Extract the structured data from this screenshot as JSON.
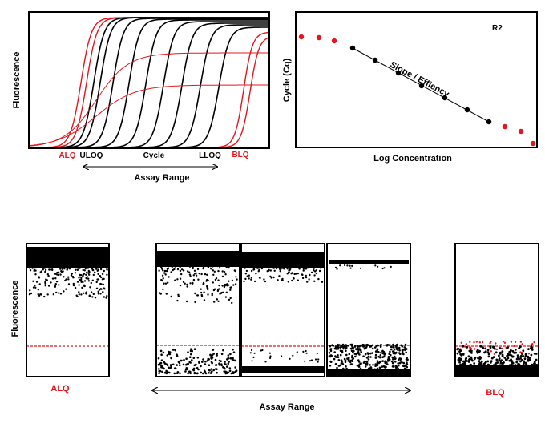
{
  "curves_panel": {
    "ylabel": "Fluorescence",
    "x_labels": {
      "alq": "ALQ",
      "uloq": "ULOQ",
      "cycle": "Cycle",
      "lloq": "LLOQ",
      "blq": "BLQ"
    },
    "range_label": "Assay Range"
  },
  "standard_panel": {
    "title": "R2",
    "ylabel": "Cycle (Cq)",
    "xlabel": "Log Concentration",
    "annotation": "Slope / Effiency"
  },
  "partition_panel": {
    "ylabel": "Fluorescence",
    "labels": {
      "alq": "ALQ",
      "range": "Assay Range",
      "blq": "BLQ"
    }
  },
  "colors": {
    "out_of_range": "#e8141c",
    "in_range": "#000000",
    "threshold": "#e8141c"
  },
  "icons": [
    "range-arrow"
  ]
}
